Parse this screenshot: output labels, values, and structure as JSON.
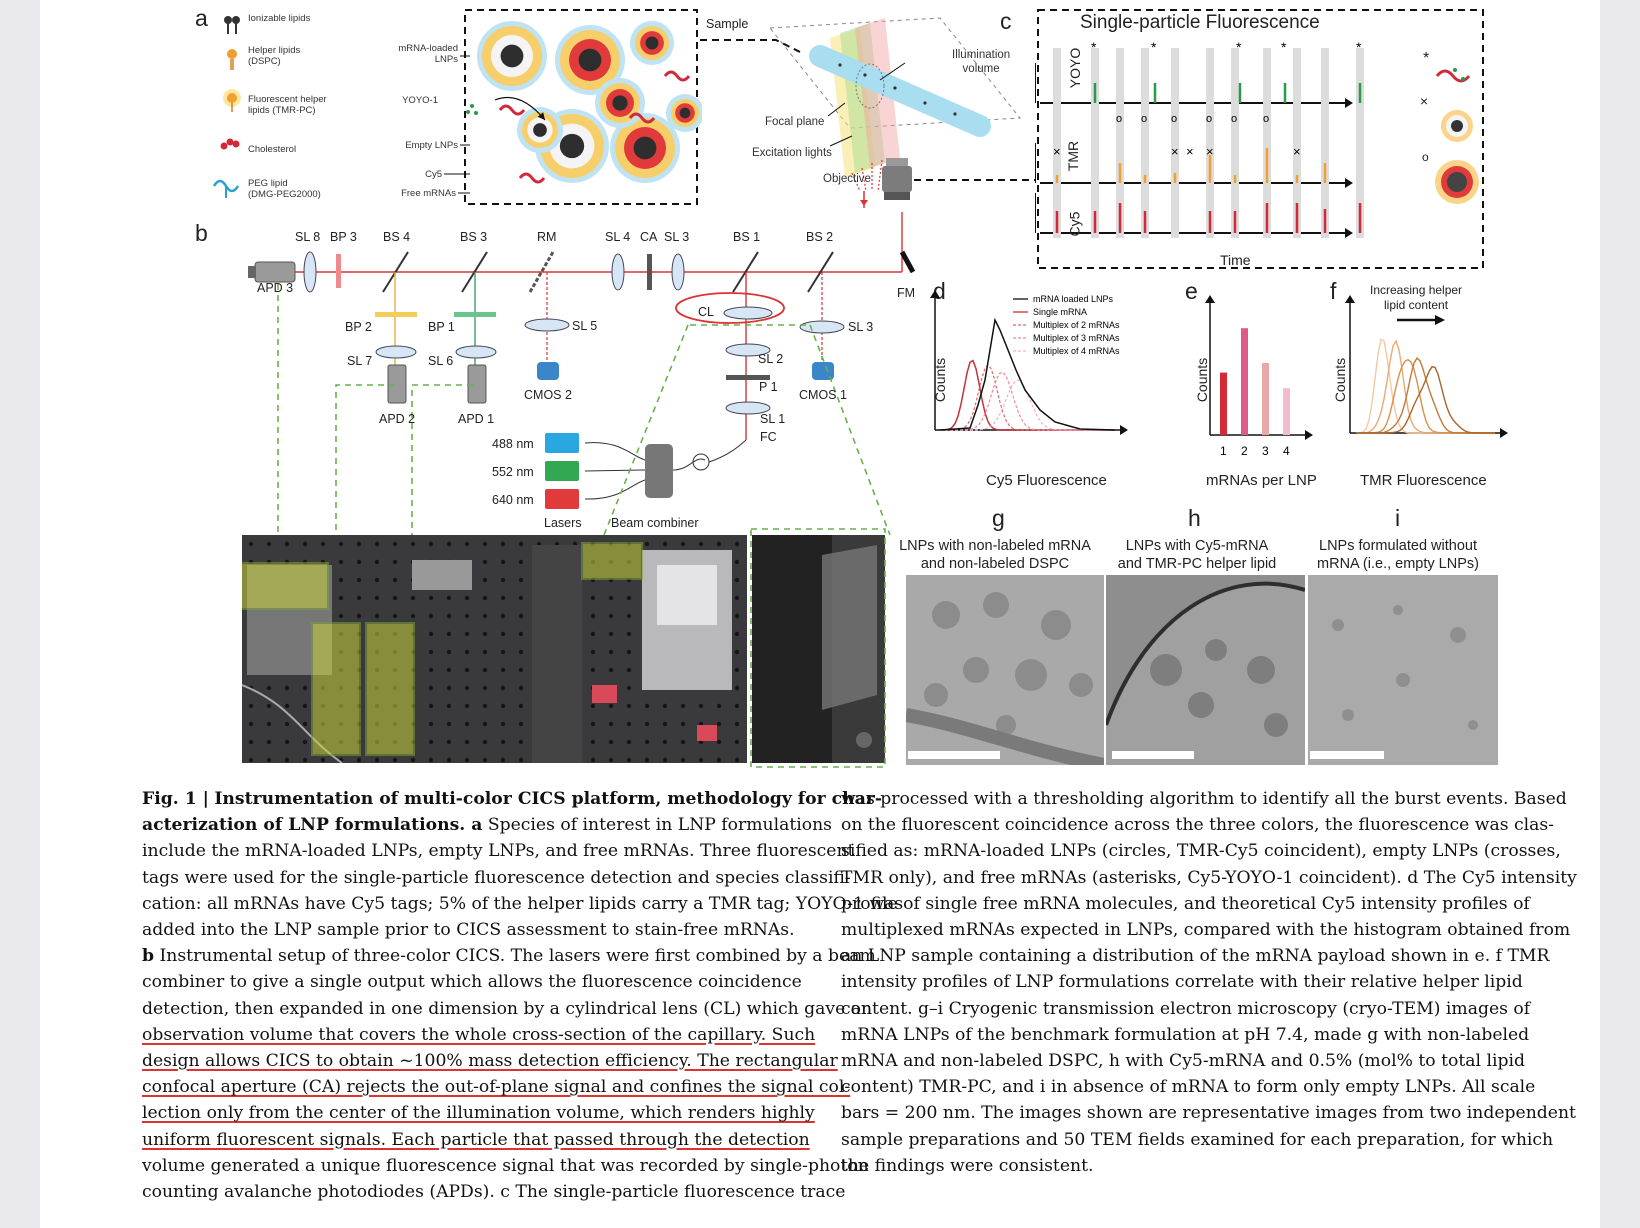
{
  "panel_a": {
    "letter": "a",
    "legend": [
      {
        "label": "Ionizable lipids",
        "icon": "ionizable-lipid-icon"
      },
      {
        "label": "Helper lipids\n(DSPC)",
        "icon": "helper-lipid-icon"
      },
      {
        "label": "Fluorescent helper\nlipids (TMR-PC)",
        "icon": "fluorescent-helper-lipid-icon"
      },
      {
        "label": "Cholesterol",
        "icon": "cholesterol-icon"
      },
      {
        "label": "PEG lipid\n(DMG-PEG2000)",
        "icon": "peg-lipid-icon"
      }
    ],
    "callouts": [
      "mRNA-loaded\nLNPs",
      "YOYO-1",
      "Empty LNPs",
      "Cy5",
      "Free mRNAs"
    ],
    "sample_label": "Sample",
    "illumination_volume": "Illumination\nvolume",
    "focal_plane": "Focal plane",
    "excitation_lights": "Excitation lights",
    "objective": "Objective"
  },
  "panel_b": {
    "letter": "b",
    "components": {
      "sl8": "SL 8",
      "bp3": "BP 3",
      "bs4": "BS 4",
      "bs3": "BS 3",
      "rm": "RM",
      "sl4": "SL 4",
      "ca": "CA",
      "sl3_top": "SL 3",
      "bs1": "BS 1",
      "bs2": "BS 2",
      "apd3": "APD 3",
      "fm": "FM",
      "bp2": "BP 2",
      "bp1": "BP 1",
      "sl5": "SL 5",
      "cl": "CL",
      "sl3": "SL 3",
      "sl7": "SL 7",
      "sl6": "SL 6",
      "sl2": "SL 2",
      "cmos2": "CMOS 2",
      "p1": "P 1",
      "cmos1": "CMOS 1",
      "apd2": "APD 2",
      "apd1": "APD 1",
      "sl1": "SL 1",
      "fc": "FC"
    },
    "lasers": [
      {
        "label": "488 nm",
        "color": "#2aa7e0"
      },
      {
        "label": "552 nm",
        "color": "#33a852"
      },
      {
        "label": "640 nm",
        "color": "#e03a3a"
      }
    ],
    "lasers_label": "Lasers",
    "beam_combiner": "Beam combiner"
  },
  "panel_c": {
    "letter": "c",
    "title": "Single-particle Fluorescence",
    "channels": [
      "YOYO",
      "TMR",
      "Cy5"
    ],
    "xlabel": "Time",
    "markers": {
      "asterisk": "*",
      "circle": "o",
      "cross": "×"
    }
  },
  "panel_d": {
    "letter": "d",
    "xlabel": "Cy5 Fluorescence",
    "ylabel": "Counts",
    "legend": [
      "mRNA loaded LNPs",
      "Single mRNA",
      "Multiplex of 2 mRNAs",
      "Multiplex of 3 mRNAs",
      "Multiplex of 4 mRNAs"
    ]
  },
  "panel_e": {
    "letter": "e",
    "xlabel": "mRNAs per LNP",
    "ylabel": "Counts",
    "categories": [
      "1",
      "2",
      "3",
      "4"
    ],
    "values": [
      0.52,
      0.89,
      0.6,
      0.39
    ],
    "colors": [
      "#d42a35",
      "#dd5a8c",
      "#e8a8a8",
      "#f2bccd"
    ]
  },
  "panel_f": {
    "letter": "f",
    "annotation": "Increasing helper\nlipid content",
    "xlabel": "TMR Fluorescence",
    "ylabel": "Counts"
  },
  "panel_g": {
    "letter": "g",
    "caption": "LNPs with non-labeled mRNA\nand non-labeled DSPC"
  },
  "panel_h": {
    "letter": "h",
    "caption": "LNPs with Cy5-mRNA\nand TMR-PC helper lipid"
  },
  "panel_i": {
    "letter": "i",
    "caption": "LNPs formulated without\nmRNA (i.e., empty LNPs)"
  },
  "caption": {
    "fig_label": "Fig. 1 |",
    "title": "Instrumentation of multi-color CICS platform, methodology for characterization of LNP formulations.",
    "left_lines": [
      "Instrumentation of multi-color CICS platform, methodology for char-",
      "acterization of LNP formulations. a Species of interest in LNP formulations",
      "include the mRNA-loaded LNPs, empty LNPs, and free mRNAs. Three fluorescent",
      "tags were used for the single-particle fluorescence detection and species classifi-",
      "cation: all mRNAs have Cy5 tags; 5% of the helper lipids carry a TMR tag; YOYO-1 was",
      "added into the LNP sample prior to CICS assessment to stain-free mRNAs.",
      "b Instrumental setup of three-color CICS. The lasers were first combined by a beam",
      "combiner to give a single output which allows the fluorescence coincidence",
      "detection, then expanded in one dimension by a cylindrical lens (CL) which gave an",
      "observation volume that covers the whole cross-section of the capillary. Such",
      "design allows CICS to obtain ~100% mass detection efficiency. The rectangular",
      "confocal aperture (CA) rejects the out-of-plane signal and confines the signal col-",
      "lection only from the center of the illumination volume, which renders highly",
      "uniform fluorescent signals. Each particle that passed through the detection",
      "volume generated a unique fluorescence signal that was recorded by single-photon",
      "counting avalanche photodiodes (APDs). c The single-particle fluorescence trace"
    ],
    "right_lines": [
      "was processed with a thresholding algorithm to identify all the burst events. Based",
      "on the fluorescent coincidence across the three colors, the fluorescence was clas-",
      "sified as: mRNA-loaded LNPs (circles, TMR-Cy5 coincident), empty LNPs (crosses,",
      "TMR only), and free mRNAs (asterisks, Cy5-YOYO-1 coincident). d The Cy5 intensity",
      "profile of single free mRNA molecules, and theoretical Cy5 intensity profiles of",
      "multiplexed mRNAs expected in LNPs, compared with the histogram obtained from",
      "an LNP sample containing a distribution of the mRNA payload shown in e. f TMR",
      "intensity profiles of LNP formulations correlate with their relative helper lipid",
      "content. g–i Cryogenic transmission electron microscopy (cryo-TEM) images of",
      "mRNA LNPs of the benchmark formulation at pH 7.4, made g with non-labeled",
      "mRNA and non-labeled DSPC, h with Cy5-mRNA and 0.5% (mol% to total lipid",
      "content) TMR-PC, and i in absence of mRNA to form only empty LNPs. All scale",
      "bars = 200 nm. The images shown are representative images from two independent",
      "sample preparations and 50 TEM fields examined for each preparation, for which",
      "the findings were consistent."
    ]
  }
}
